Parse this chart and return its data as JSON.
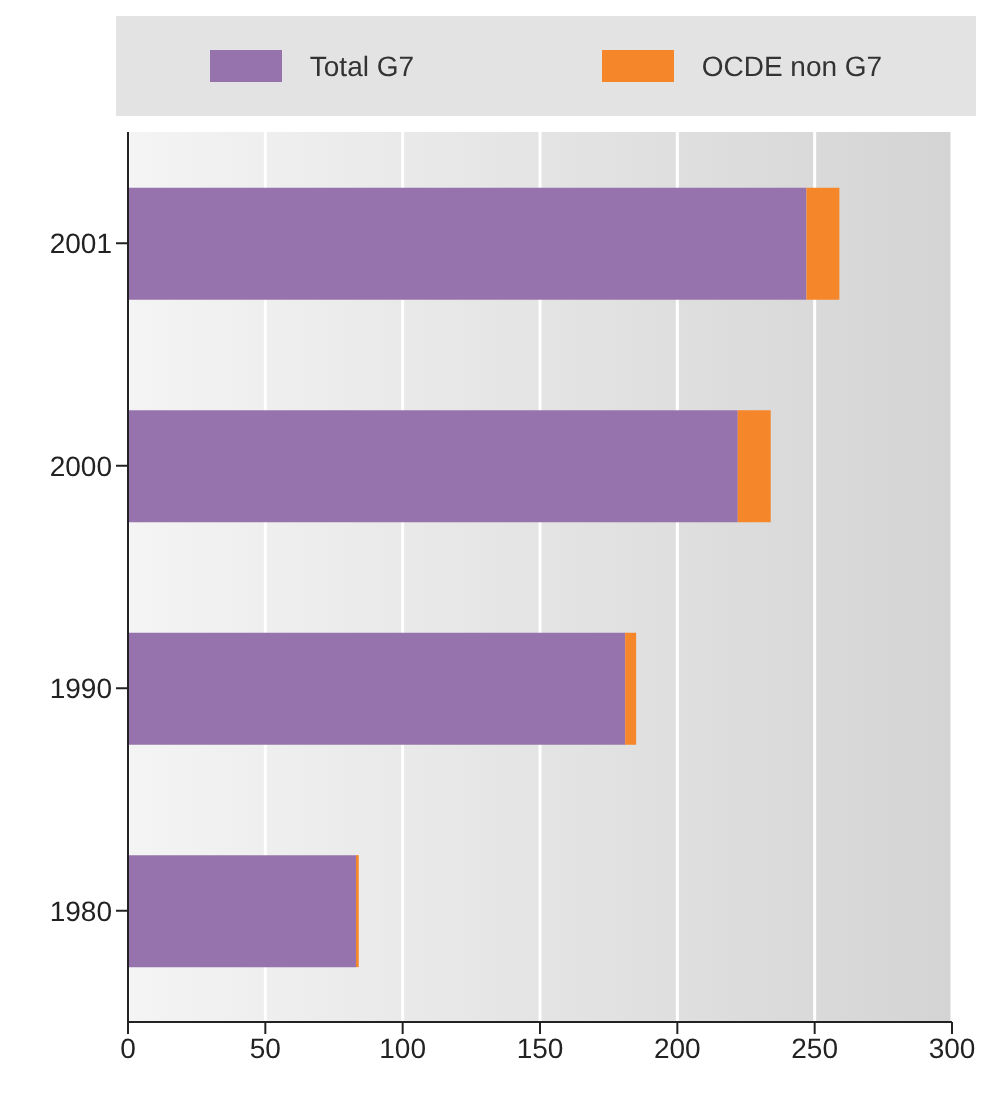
{
  "chart_data": {
    "type": "bar",
    "orientation": "horizontal",
    "stacked": true,
    "categories": [
      "2001",
      "2000",
      "1990",
      "1980"
    ],
    "series": [
      {
        "name": "Total G7",
        "color": "#9773ae",
        "values": [
          247,
          222,
          181,
          83
        ]
      },
      {
        "name": "OCDE non G7",
        "color": "#f5862a",
        "values": [
          12,
          12,
          4,
          1
        ]
      }
    ],
    "xlim": [
      0,
      300
    ],
    "xticks": [
      0,
      50,
      100,
      150,
      200,
      250,
      300
    ],
    "grid": "x",
    "legend": "top"
  }
}
